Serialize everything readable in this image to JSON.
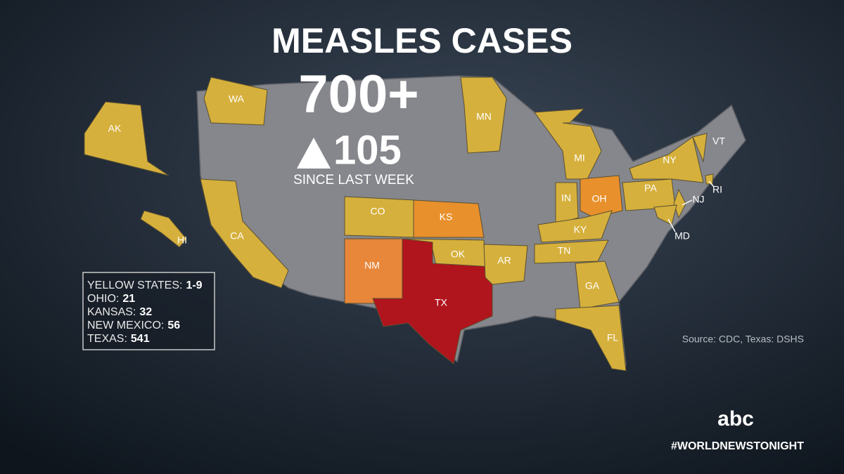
{
  "title": "MEASLES CASES",
  "total": "700+",
  "change": "105",
  "change_label": "SINCE LAST WEEK",
  "legend": [
    {
      "label": "YELLOW STATES:",
      "value": "1-9"
    },
    {
      "label": "OHIO:",
      "value": 21
    },
    {
      "label": "KANSAS:",
      "value": 32
    },
    {
      "label": "NEW MEXICO:",
      "value": 56
    },
    {
      "label": "TEXAS:",
      "value": 541
    }
  ],
  "states": [
    {
      "label": "WA",
      "color": "#d6b03c"
    },
    {
      "label": "AK",
      "color": "#d6b03c"
    },
    {
      "label": "HI",
      "color": "#d6b03c"
    },
    {
      "label": "CA",
      "color": "#d6b03c"
    },
    {
      "label": "CO",
      "color": "#d6b03c"
    },
    {
      "label": "KS",
      "color": "#e8902c"
    },
    {
      "label": "NM",
      "color": "#e8863a"
    },
    {
      "label": "OK",
      "color": "#d6b03c"
    },
    {
      "label": "TX",
      "color": "#b0141c"
    },
    {
      "label": "MN",
      "color": "#d6b03c"
    },
    {
      "label": "AR",
      "color": "#d6b03c"
    },
    {
      "label": "MI",
      "color": "#d6b03c"
    },
    {
      "label": "IN",
      "color": "#d6b03c"
    },
    {
      "label": "OH",
      "color": "#e8902c"
    },
    {
      "label": "KY",
      "color": "#d6b03c"
    },
    {
      "label": "TN",
      "color": "#d6b03c"
    },
    {
      "label": "GA",
      "color": "#d6b03c"
    },
    {
      "label": "FL",
      "color": "#d6b03c"
    },
    {
      "label": "PA",
      "color": "#d6b03c"
    },
    {
      "label": "NY",
      "color": "#d6b03c"
    },
    {
      "label": "VT",
      "color": "#d6b03c"
    },
    {
      "label": "NJ",
      "color": "#d6b03c"
    },
    {
      "label": "MD",
      "color": "#d6b03c"
    },
    {
      "label": "RI",
      "color": "#d6b03c"
    }
  ],
  "source": "Source: CDC, Texas: DSHS",
  "network": "abc",
  "hashtag": "#WORLDNEWSTONIGHT"
}
